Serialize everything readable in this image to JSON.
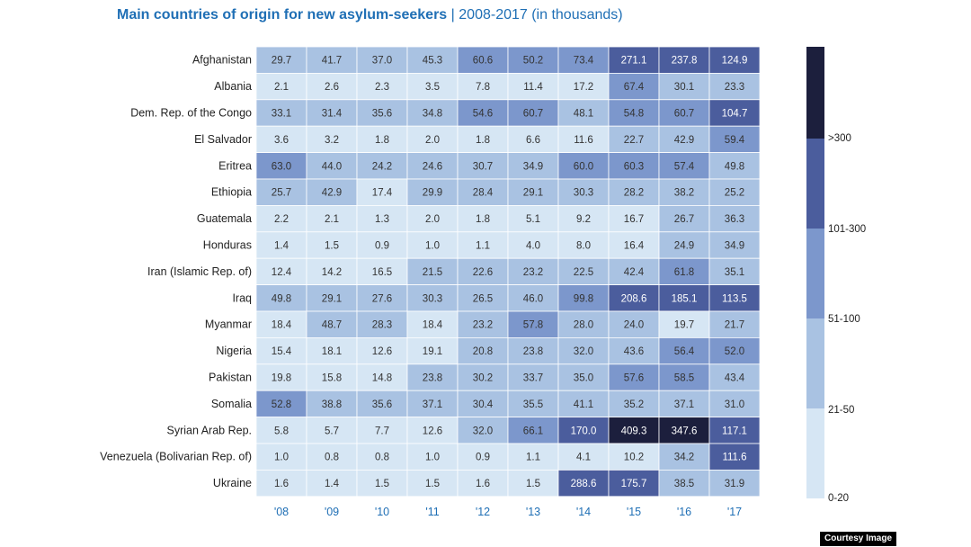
{
  "title_main": "Main countries of origin for new asylum-seekers",
  "title_separator": "|",
  "title_sub": "2008-2017 (in thousands)",
  "credit": "Courtesy Image",
  "colors": {
    "title": "#1f6fb5",
    "year_labels": "#1f6fb5",
    "bins": [
      "#d6e6f4",
      "#a9c2e2",
      "#7c97cc",
      "#4b5d9d",
      "#1c1f3d"
    ]
  },
  "chart_data": {
    "type": "heatmap",
    "title": "Main countries of origin for new asylum-seekers | 2008-2017 (in thousands)",
    "x_labels": [
      "'08",
      "'09",
      "'10",
      "'11",
      "'12",
      "'13",
      "'14",
      "'15",
      "'16",
      "'17"
    ],
    "rows": [
      {
        "country": "Afghanistan",
        "values": [
          "29.7",
          "41.7",
          "37.0",
          "45.3",
          "60.6",
          "50.2",
          "73.4",
          "271.1",
          "237.8",
          "124.9"
        ]
      },
      {
        "country": "Albania",
        "values": [
          "2.1",
          "2.6",
          "2.3",
          "3.5",
          "7.8",
          "11.4",
          "17.2",
          "67.4",
          "30.1",
          "23.3"
        ]
      },
      {
        "country": "Dem. Rep. of the Congo",
        "values": [
          "33.1",
          "31.4",
          "35.6",
          "34.8",
          "54.6",
          "60.7",
          "48.1",
          "54.8",
          "60.7",
          "104.7"
        ]
      },
      {
        "country": "El Salvador",
        "values": [
          "3.6",
          "3.2",
          "1.8",
          "2.0",
          "1.8",
          "6.6",
          "11.6",
          "22.7",
          "42.9",
          "59.4"
        ]
      },
      {
        "country": "Eritrea",
        "values": [
          "63.0",
          "44.0",
          "24.2",
          "24.6",
          "30.7",
          "34.9",
          "60.0",
          "60.3",
          "57.4",
          "49.8"
        ]
      },
      {
        "country": "Ethiopia",
        "values": [
          "25.7",
          "42.9",
          "17.4",
          "29.9",
          "28.4",
          "29.1",
          "30.3",
          "28.2",
          "38.2",
          "25.2"
        ]
      },
      {
        "country": "Guatemala",
        "values": [
          "2.2",
          "2.1",
          "1.3",
          "2.0",
          "1.8",
          "5.1",
          "9.2",
          "16.7",
          "26.7",
          "36.3"
        ]
      },
      {
        "country": "Honduras",
        "values": [
          "1.4",
          "1.5",
          "0.9",
          "1.0",
          "1.1",
          "4.0",
          "8.0",
          "16.4",
          "24.9",
          "34.9"
        ]
      },
      {
        "country": "Iran (Islamic Rep. of)",
        "values": [
          "12.4",
          "14.2",
          "16.5",
          "21.5",
          "22.6",
          "23.2",
          "22.5",
          "42.4",
          "61.8",
          "35.1"
        ]
      },
      {
        "country": "Iraq",
        "values": [
          "49.8",
          "29.1",
          "27.6",
          "30.3",
          "26.5",
          "46.0",
          "99.8",
          "208.6",
          "185.1",
          "113.5"
        ]
      },
      {
        "country": "Myanmar",
        "values": [
          "18.4",
          "48.7",
          "28.3",
          "18.4",
          "23.2",
          "57.8",
          "28.0",
          "24.0",
          "19.7",
          "21.7"
        ]
      },
      {
        "country": "Nigeria",
        "values": [
          "15.4",
          "18.1",
          "12.6",
          "19.1",
          "20.8",
          "23.8",
          "32.0",
          "43.6",
          "56.4",
          "52.0"
        ]
      },
      {
        "country": "Pakistan",
        "values": [
          "19.8",
          "15.8",
          "14.8",
          "23.8",
          "30.2",
          "33.7",
          "35.0",
          "57.6",
          "58.5",
          "43.4"
        ]
      },
      {
        "country": "Somalia",
        "values": [
          "52.8",
          "38.8",
          "35.6",
          "37.1",
          "30.4",
          "35.5",
          "41.1",
          "35.2",
          "37.1",
          "31.0"
        ]
      },
      {
        "country": "Syrian Arab Rep.",
        "values": [
          "5.8",
          "5.7",
          "7.7",
          "12.6",
          "32.0",
          "66.1",
          "170.0",
          "409.3",
          "347.6",
          "117.1"
        ]
      },
      {
        "country": "Venezuela (Bolivarian Rep. of)",
        "values": [
          "1.0",
          "0.8",
          "0.8",
          "1.0",
          "0.9",
          "1.1",
          "4.1",
          "10.2",
          "34.2",
          "111.6"
        ]
      },
      {
        "country": "Ukraine",
        "values": [
          "1.6",
          "1.4",
          "1.5",
          "1.5",
          "1.6",
          "1.5",
          "288.6",
          "175.7",
          "38.5",
          "31.9"
        ]
      }
    ],
    "legend": {
      "labels": [
        "0-20",
        "21-50",
        "51-100",
        "101-300",
        ">300"
      ],
      "thresholds": [
        20,
        50,
        100,
        300
      ]
    }
  }
}
